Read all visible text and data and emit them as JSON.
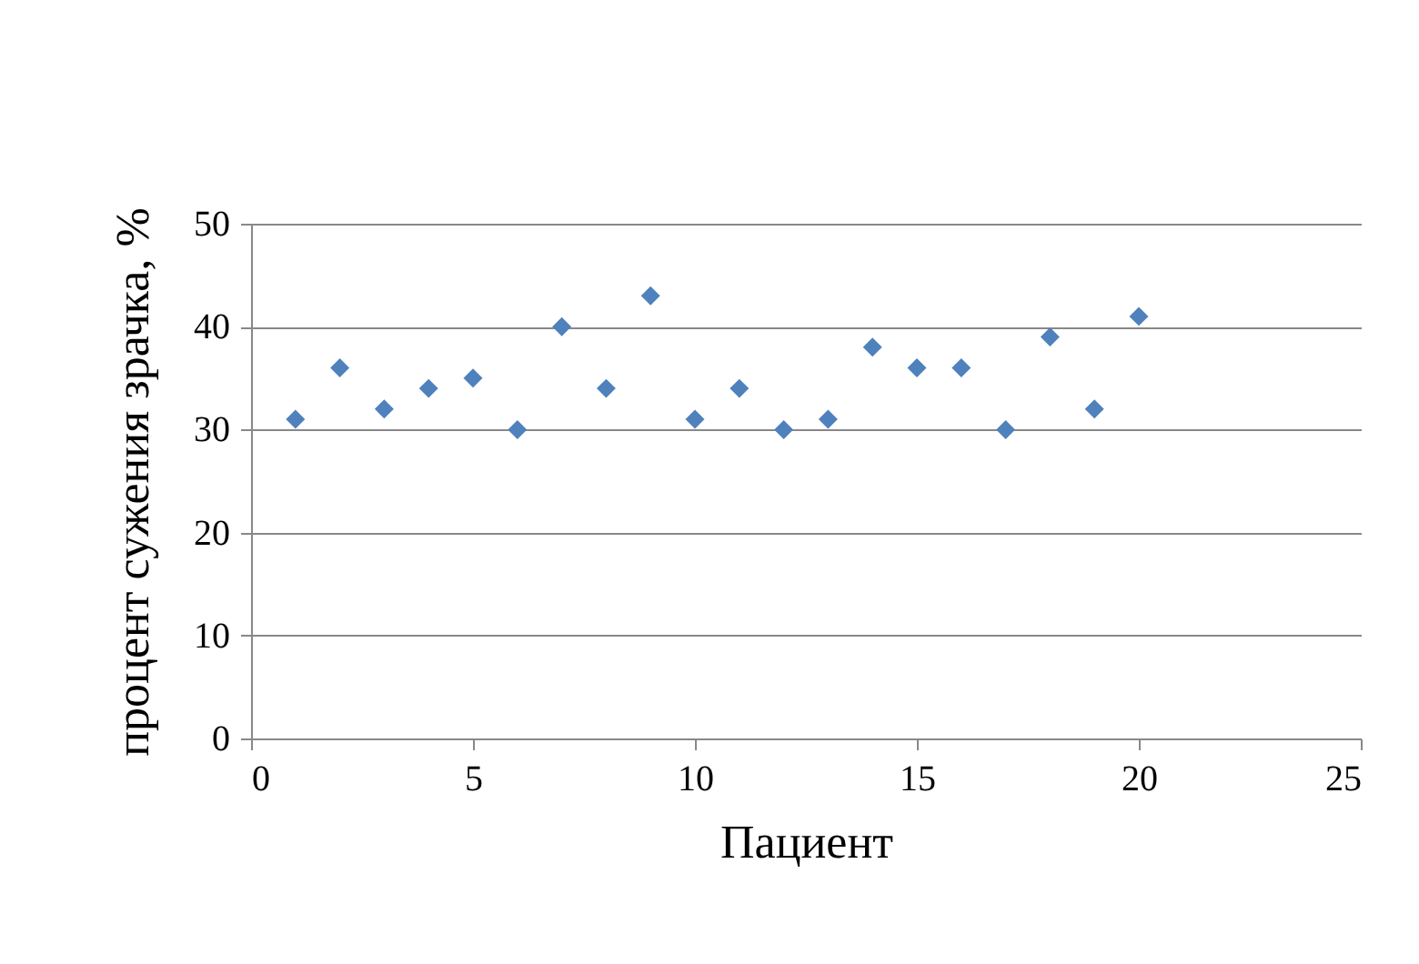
{
  "chart_data": {
    "type": "scatter",
    "xlabel": "Пациент",
    "ylabel": "процент сужения зрачка, %",
    "x": [
      1,
      2,
      3,
      4,
      5,
      6,
      7,
      8,
      9,
      10,
      11,
      12,
      13,
      14,
      15,
      16,
      17,
      18,
      19,
      20
    ],
    "series": [
      {
        "color": "#4f81bd",
        "values": [
          31,
          36,
          32,
          34,
          35,
          30,
          40,
          34,
          43,
          31,
          34,
          30,
          31,
          38,
          36,
          36,
          30,
          39,
          32,
          41
        ]
      }
    ],
    "xlim": [
      0,
      25
    ],
    "xticks": [
      0,
      5,
      10,
      15,
      20,
      25
    ],
    "ylim": [
      0,
      50
    ],
    "yticks": [
      0,
      10,
      20,
      30,
      40,
      50
    ],
    "grid": "y",
    "marker": "diamond",
    "legend": false
  }
}
